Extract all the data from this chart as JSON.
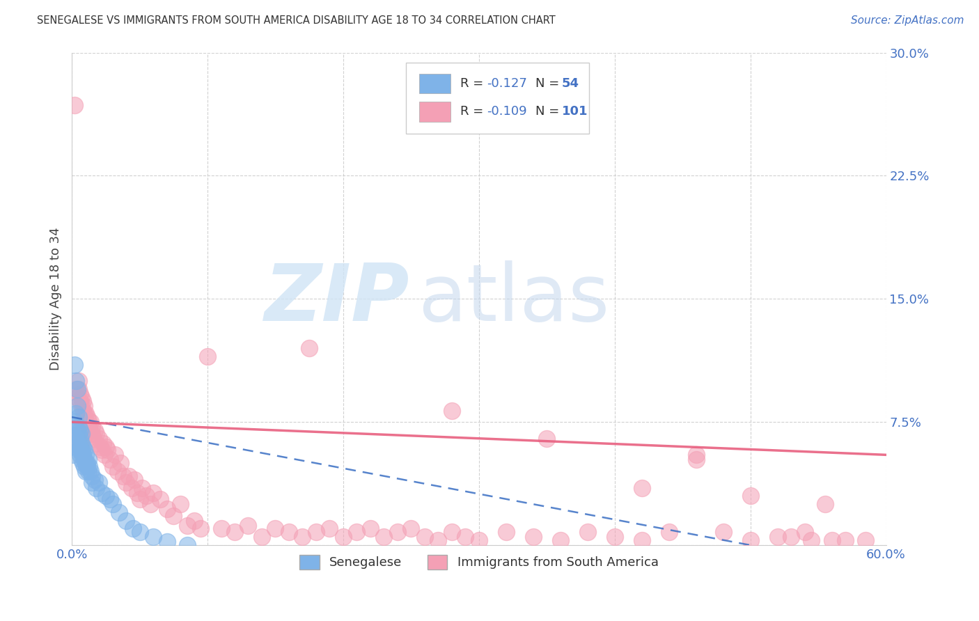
{
  "title": "SENEGALESE VS IMMIGRANTS FROM SOUTH AMERICA DISABILITY AGE 18 TO 34 CORRELATION CHART",
  "source": "Source: ZipAtlas.com",
  "ylabel": "Disability Age 18 to 34",
  "xlim": [
    0.0,
    0.6
  ],
  "ylim": [
    0.0,
    0.3
  ],
  "xtick_vals": [
    0.0,
    0.1,
    0.2,
    0.3,
    0.4,
    0.5,
    0.6
  ],
  "xticklabels": [
    "0.0%",
    "",
    "",
    "",
    "",
    "",
    "60.0%"
  ],
  "ytick_vals": [
    0.0,
    0.075,
    0.15,
    0.225,
    0.3
  ],
  "yticklabels": [
    "",
    "7.5%",
    "15.0%",
    "22.5%",
    "30.0%"
  ],
  "R_senegalese": -0.127,
  "N_senegalese": 54,
  "R_southamerica": -0.109,
  "N_southamerica": 101,
  "color_blue": "#7FB3E8",
  "color_pink": "#F4A0B5",
  "color_blue_line": "#3A6FC4",
  "color_pink_line": "#E86080",
  "color_axis": "#4472C4",
  "background_color": "#FFFFFF",
  "senegalese_x": [
    0.001,
    0.002,
    0.002,
    0.003,
    0.003,
    0.003,
    0.004,
    0.004,
    0.004,
    0.004,
    0.005,
    0.005,
    0.005,
    0.005,
    0.005,
    0.006,
    0.006,
    0.006,
    0.006,
    0.007,
    0.007,
    0.007,
    0.007,
    0.008,
    0.008,
    0.008,
    0.009,
    0.009,
    0.009,
    0.01,
    0.01,
    0.01,
    0.011,
    0.011,
    0.012,
    0.012,
    0.013,
    0.014,
    0.015,
    0.015,
    0.017,
    0.018,
    0.02,
    0.022,
    0.025,
    0.028,
    0.03,
    0.035,
    0.04,
    0.045,
    0.05,
    0.06,
    0.07,
    0.085
  ],
  "senegalese_y": [
    0.055,
    0.075,
    0.11,
    0.06,
    0.08,
    0.1,
    0.085,
    0.095,
    0.07,
    0.065,
    0.068,
    0.072,
    0.078,
    0.062,
    0.058,
    0.065,
    0.07,
    0.06,
    0.055,
    0.062,
    0.068,
    0.058,
    0.052,
    0.06,
    0.055,
    0.05,
    0.058,
    0.052,
    0.048,
    0.055,
    0.05,
    0.045,
    0.05,
    0.048,
    0.052,
    0.045,
    0.048,
    0.045,
    0.042,
    0.038,
    0.04,
    0.035,
    0.038,
    0.032,
    0.03,
    0.028,
    0.025,
    0.02,
    0.015,
    0.01,
    0.008,
    0.005,
    0.002,
    0.0
  ],
  "southamerica_x": [
    0.002,
    0.003,
    0.004,
    0.005,
    0.005,
    0.006,
    0.006,
    0.007,
    0.007,
    0.008,
    0.008,
    0.009,
    0.009,
    0.01,
    0.01,
    0.011,
    0.012,
    0.012,
    0.013,
    0.014,
    0.015,
    0.015,
    0.016,
    0.017,
    0.018,
    0.018,
    0.02,
    0.021,
    0.022,
    0.023,
    0.024,
    0.025,
    0.026,
    0.028,
    0.03,
    0.032,
    0.034,
    0.036,
    0.038,
    0.04,
    0.042,
    0.044,
    0.046,
    0.048,
    0.05,
    0.052,
    0.055,
    0.058,
    0.06,
    0.065,
    0.07,
    0.075,
    0.08,
    0.085,
    0.09,
    0.095,
    0.1,
    0.11,
    0.12,
    0.13,
    0.14,
    0.15,
    0.16,
    0.17,
    0.18,
    0.19,
    0.2,
    0.21,
    0.22,
    0.23,
    0.24,
    0.25,
    0.26,
    0.27,
    0.28,
    0.29,
    0.3,
    0.32,
    0.34,
    0.36,
    0.38,
    0.4,
    0.42,
    0.44,
    0.46,
    0.48,
    0.5,
    0.52,
    0.54,
    0.56,
    0.175,
    0.28,
    0.35,
    0.42,
    0.46,
    0.5,
    0.53,
    0.545,
    0.555,
    0.57,
    0.585
  ],
  "southamerica_y": [
    0.268,
    0.095,
    0.09,
    0.095,
    0.1,
    0.088,
    0.092,
    0.085,
    0.09,
    0.082,
    0.088,
    0.08,
    0.085,
    0.075,
    0.08,
    0.078,
    0.072,
    0.076,
    0.07,
    0.075,
    0.068,
    0.072,
    0.065,
    0.07,
    0.068,
    0.062,
    0.065,
    0.06,
    0.058,
    0.062,
    0.055,
    0.06,
    0.058,
    0.052,
    0.048,
    0.055,
    0.045,
    0.05,
    0.042,
    0.038,
    0.042,
    0.035,
    0.04,
    0.032,
    0.028,
    0.035,
    0.03,
    0.025,
    0.032,
    0.028,
    0.022,
    0.018,
    0.025,
    0.012,
    0.015,
    0.01,
    0.115,
    0.01,
    0.008,
    0.012,
    0.005,
    0.01,
    0.008,
    0.005,
    0.008,
    0.01,
    0.005,
    0.008,
    0.01,
    0.005,
    0.008,
    0.01,
    0.005,
    0.003,
    0.008,
    0.005,
    0.003,
    0.008,
    0.005,
    0.003,
    0.008,
    0.005,
    0.003,
    0.008,
    0.055,
    0.008,
    0.003,
    0.005,
    0.008,
    0.003,
    0.12,
    0.082,
    0.065,
    0.035,
    0.052,
    0.03,
    0.005,
    0.003,
    0.025,
    0.003,
    0.003
  ]
}
